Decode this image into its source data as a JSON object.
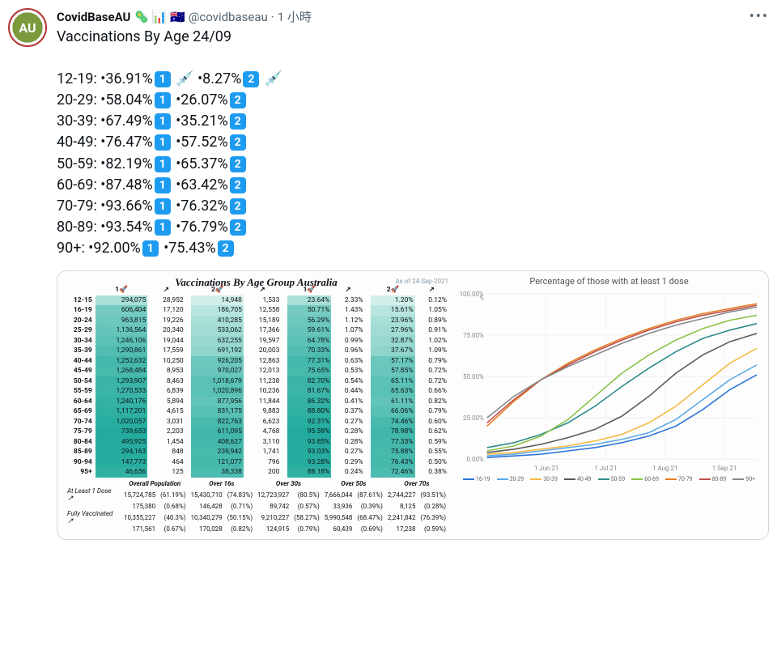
{
  "tweet": {
    "avatar_text": "AU",
    "display_name": "CovidBaseAU",
    "name_emojis": "🦠 📊 🇦🇺",
    "handle": "@covidbaseau",
    "separator": "·",
    "time": "1 小時",
    "more": "•••",
    "line_title": "Vaccinations By Age 24/09",
    "rows": [
      {
        "age": "12-19",
        "d1": "36.91%",
        "d2": "8.27%",
        "syr": true
      },
      {
        "age": "20-29",
        "d1": "58.04%",
        "d2": "26.07%"
      },
      {
        "age": "30-39",
        "d1": "67.49%",
        "d2": "35.21%"
      },
      {
        "age": "40-49",
        "d1": "76.47%",
        "d2": "57.52%"
      },
      {
        "age": "50-59",
        "d1": "82.19%",
        "d2": "65.37%"
      },
      {
        "age": "60-69",
        "d1": "87.48%",
        "d2": "63.42%"
      },
      {
        "age": "70-79",
        "d1": "93.66%",
        "d2": "76.32%"
      },
      {
        "age": "80-89",
        "d1": "93.54%",
        "d2": "76.79%"
      },
      {
        "age": "90+",
        "d1": "92.00%",
        "d2": "75.43%"
      }
    ]
  },
  "embed": {
    "title": "Vaccinations By Age Group Australia",
    "asof": "As of   24-Sep-2021",
    "headers": {
      "d1n": "1🚀",
      "d1d": "↗",
      "d2n": "2🚀",
      "d2d": "↗",
      "d1p": "1🚀",
      "d1pd": "↗",
      "d2p": "2🚀",
      "d2pd": "↗"
    },
    "grad_colors": {
      "low": "#d5f0ea",
      "high": "#1aa89a"
    },
    "rows": [
      {
        "age": "12-15",
        "d1n": "294,075",
        "d1d": "28,952",
        "d2n": "14,948",
        "d2d": "1,533",
        "d1p": "23.64%",
        "d1pd": "2.33%",
        "d2p": "1.20%",
        "d2pd": "0.12%",
        "v1": 23.64,
        "v2": 1.2
      },
      {
        "age": "16-19",
        "d1n": "606,404",
        "d1d": "17,120",
        "d2n": "186,705",
        "d2d": "12,558",
        "d1p": "50.71%",
        "d1pd": "1.43%",
        "d2p": "15.61%",
        "d2pd": "1.05%",
        "v1": 50.71,
        "v2": 15.61
      },
      {
        "age": "20-24",
        "d1n": "963,815",
        "d1d": "19,226",
        "d2n": "410,285",
        "d2d": "15,189",
        "d1p": "56.29%",
        "d1pd": "1.12%",
        "d2p": "23.96%",
        "d2pd": "0.89%",
        "v1": 56.29,
        "v2": 23.96
      },
      {
        "age": "25-29",
        "d1n": "1,136,564",
        "d1d": "20,340",
        "d2n": "533,062",
        "d2d": "17,366",
        "d1p": "59.61%",
        "d1pd": "1.07%",
        "d2p": "27.96%",
        "d2pd": "0.91%",
        "v1": 59.61,
        "v2": 27.96
      },
      {
        "age": "30-34",
        "d1n": "1,246,106",
        "d1d": "19,044",
        "d2n": "632,255",
        "d2d": "19,597",
        "d1p": "64.78%",
        "d1pd": "0.99%",
        "d2p": "32.87%",
        "d2pd": "1.02%",
        "v1": 64.78,
        "v2": 32.87
      },
      {
        "age": "35-39",
        "d1n": "1,290,861",
        "d1d": "17,559",
        "d2n": "691,192",
        "d2d": "20,003",
        "d1p": "70.33%",
        "d1pd": "0.96%",
        "d2p": "37.67%",
        "d2pd": "1.09%",
        "v1": 70.33,
        "v2": 37.67
      },
      {
        "age": "40-44",
        "d1n": "1,252,632",
        "d1d": "10,250",
        "d2n": "926,205",
        "d2d": "12,863",
        "d1p": "77.31%",
        "d1pd": "0.63%",
        "d2p": "57.17%",
        "d2pd": "0.79%",
        "v1": 77.31,
        "v2": 57.17
      },
      {
        "age": "45-49",
        "d1n": "1,268,484",
        "d1d": "8,953",
        "d2n": "970,027",
        "d2d": "12,013",
        "d1p": "75.65%",
        "d1pd": "0.53%",
        "d2p": "57.85%",
        "d2pd": "0.72%",
        "v1": 75.65,
        "v2": 57.85
      },
      {
        "age": "50-54",
        "d1n": "1,293,907",
        "d1d": "8,463",
        "d2n": "1,018,679",
        "d2d": "11,238",
        "d1p": "82.70%",
        "d1pd": "0.54%",
        "d2p": "65.11%",
        "d2pd": "0.72%",
        "v1": 82.7,
        "v2": 65.11
      },
      {
        "age": "55-59",
        "d1n": "1,270,533",
        "d1d": "6,839",
        "d2n": "1,020,896",
        "d2d": "10,236",
        "d1p": "81.67%",
        "d1pd": "0.44%",
        "d2p": "65.63%",
        "d2pd": "0.66%",
        "v1": 81.67,
        "v2": 65.63
      },
      {
        "age": "60-64",
        "d1n": "1,240,176",
        "d1d": "5,894",
        "d2n": "877,956",
        "d2d": "11,844",
        "d1p": "86.32%",
        "d1pd": "0.41%",
        "d2p": "61.11%",
        "d2pd": "0.82%",
        "v1": 86.32,
        "v2": 61.11
      },
      {
        "age": "65-69",
        "d1n": "1,117,201",
        "d1d": "4,615",
        "d2n": "831,175",
        "d2d": "9,883",
        "d1p": "88.80%",
        "d1pd": "0.37%",
        "d2p": "66.06%",
        "d2pd": "0.79%",
        "v1": 88.8,
        "v2": 66.06
      },
      {
        "age": "70-74",
        "d1n": "1,020,057",
        "d1d": "3,031",
        "d2n": "822,763",
        "d2d": "6,623",
        "d1p": "92.31%",
        "d1pd": "0.27%",
        "d2p": "74.46%",
        "d2pd": "0.60%",
        "v1": 92.31,
        "v2": 74.46
      },
      {
        "age": "75-79",
        "d1n": "739,653",
        "d1d": "2,203",
        "d2n": "611,095",
        "d2d": "4,768",
        "d1p": "95.59%",
        "d1pd": "0.28%",
        "d2p": "78.98%",
        "d2pd": "0.62%",
        "v1": 95.59,
        "v2": 78.98
      },
      {
        "age": "80-84",
        "d1n": "495,925",
        "d1d": "1,454",
        "d2n": "408,627",
        "d2d": "3,110",
        "d1p": "93.85%",
        "d1pd": "0.28%",
        "d2p": "77.33%",
        "d2pd": "0.59%",
        "v1": 93.85,
        "v2": 77.33
      },
      {
        "age": "85-89",
        "d1n": "294,163",
        "d1d": "848",
        "d2n": "239,942",
        "d2d": "1,741",
        "d1p": "93.03%",
        "d1pd": "0.27%",
        "d2p": "75.88%",
        "d2pd": "0.55%",
        "v1": 93.03,
        "v2": 75.88
      },
      {
        "age": "90-94",
        "d1n": "147,773",
        "d1d": "464",
        "d2n": "121,077",
        "d2d": "796",
        "d1p": "93.28%",
        "d1pd": "0.29%",
        "d2p": "76.43%",
        "d2pd": "0.50%",
        "v1": 93.28,
        "v2": 76.43
      },
      {
        "age": "95+",
        "d1n": "46,656",
        "d1d": "125",
        "d2n": "38,338",
        "d2d": "200",
        "d1p": "88.18%",
        "d1pd": "0.24%",
        "d2p": "72.46%",
        "d2pd": "0.38%",
        "v1": 88.18,
        "v2": 72.46
      }
    ],
    "summary_headers": [
      "",
      "Overall Population",
      "Over 16s",
      "Over 30s",
      "Over 50s",
      "Over 70s"
    ],
    "summary": [
      {
        "label": "At Least 1 Dose",
        "icon": "↗",
        "cells": [
          [
            "15,724,785",
            "(61.19%)"
          ],
          [
            "15,430,710",
            "(74.83%)"
          ],
          [
            "12,723,927",
            "(80.5%)"
          ],
          [
            "7,666,044",
            "(87.61%)"
          ],
          [
            "2,744,227",
            "(93.51%)"
          ]
        ]
      },
      {
        "label": "",
        "icon": "",
        "cells": [
          [
            "175,380",
            "(0.68%)"
          ],
          [
            "146,428",
            "(0.71%)"
          ],
          [
            "89,742",
            "(0.57%)"
          ],
          [
            "33,936",
            "(0.39%)"
          ],
          [
            "8,125",
            "(0.28%)"
          ]
        ]
      },
      {
        "label": "Fully Vaccinated",
        "icon": "↗",
        "cells": [
          [
            "10,355,227",
            "(40.3%)"
          ],
          [
            "10,340,279",
            "(50.15%)"
          ],
          [
            "9,210,227",
            "(58.27%)"
          ],
          [
            "5,990,548",
            "(68.47%)"
          ],
          [
            "2,241,842",
            "(76.39%)"
          ]
        ]
      },
      {
        "label": "",
        "icon": "",
        "cells": [
          [
            "171,561",
            "(0.67%)"
          ],
          [
            "170,028",
            "(0.82%)"
          ],
          [
            "124,915",
            "(0.79%)"
          ],
          [
            "60,439",
            "(0.69%)"
          ],
          [
            "17,238",
            "(0.59%)"
          ]
        ]
      }
    ]
  },
  "chart": {
    "title": "Percentage of those with at least 1 dose",
    "y_max": 100,
    "y_step": 25,
    "y_ticks": [
      "0.00%",
      "25.00%",
      "50.00%",
      "75.00%",
      "100.00%"
    ],
    "x_labels": [
      "1 Jun 21",
      "1 Jul 21",
      "1 Aug 21",
      "1 Sep 21"
    ],
    "x_positions": [
      0.22,
      0.44,
      0.66,
      0.88
    ],
    "series": [
      {
        "name": "16-19",
        "color": "#2e75d6",
        "pts": [
          1,
          2,
          3,
          5,
          7,
          10,
          14,
          20,
          30,
          42,
          51
        ]
      },
      {
        "name": "20-29",
        "color": "#5aa9e6",
        "pts": [
          2,
          3,
          5,
          7,
          9,
          12,
          16,
          24,
          36,
          48,
          57
        ]
      },
      {
        "name": "30-39",
        "color": "#f4b942",
        "pts": [
          3,
          4,
          6,
          8,
          11,
          15,
          22,
          32,
          45,
          58,
          67
        ]
      },
      {
        "name": "40-49",
        "color": "#5a5a5a",
        "pts": [
          4,
          6,
          9,
          13,
          18,
          26,
          38,
          52,
          63,
          71,
          76
        ]
      },
      {
        "name": "50-59",
        "color": "#2e8b8b",
        "pts": [
          7,
          10,
          15,
          22,
          32,
          44,
          55,
          65,
          73,
          78,
          82
        ]
      },
      {
        "name": "60-69",
        "color": "#8bc34a",
        "pts": [
          5,
          8,
          14,
          24,
          38,
          52,
          63,
          72,
          79,
          84,
          87
        ]
      },
      {
        "name": "70-79",
        "color": "#e67e22",
        "pts": [
          20,
          35,
          48,
          58,
          66,
          73,
          79,
          84,
          88,
          91,
          94
        ]
      },
      {
        "name": "80-89",
        "color": "#c0504d",
        "pts": [
          22,
          36,
          48,
          57,
          65,
          72,
          78,
          83,
          87,
          90,
          93
        ]
      },
      {
        "name": "90+",
        "color": "#888888",
        "pts": [
          25,
          38,
          48,
          56,
          63,
          70,
          76,
          81,
          85,
          89,
          92
        ]
      }
    ]
  }
}
